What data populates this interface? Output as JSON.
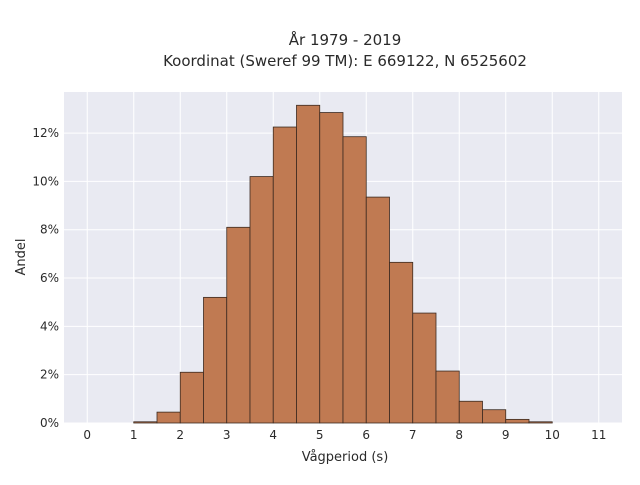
{
  "colors": {
    "bar_fill": "#c07a52",
    "bar_stroke": "#3b2a20",
    "plot_background": "#e9eaf2",
    "grid": "#ffffff"
  },
  "chart_data": {
    "type": "bar",
    "title_lines": [
      "År 1979 - 2019",
      "Koordinat (Sweref 99 TM): E 669122, N 6525602"
    ],
    "xlabel": "Vågperiod (s)",
    "ylabel": "Andel",
    "xlim": [
      -0.5,
      11.5
    ],
    "ylim": [
      0,
      13.7
    ],
    "x_ticks": [
      0,
      1,
      2,
      3,
      4,
      5,
      6,
      7,
      8,
      9,
      10,
      11
    ],
    "y_ticks": [
      0,
      2,
      4,
      6,
      8,
      10,
      12
    ],
    "y_tick_labels": [
      "0%",
      "2%",
      "4%",
      "6%",
      "8%",
      "10%",
      "12%"
    ],
    "grid": true,
    "bin_width": 0.5,
    "bin_starts": [
      1.0,
      1.5,
      2.0,
      2.5,
      3.0,
      3.5,
      4.0,
      4.5,
      5.0,
      5.5,
      6.0,
      6.5,
      7.0,
      7.5,
      8.0,
      8.5,
      9.0,
      9.5
    ],
    "values": [
      0.05,
      0.45,
      2.1,
      5.2,
      8.1,
      10.2,
      12.25,
      13.15,
      12.85,
      11.85,
      9.35,
      6.65,
      4.55,
      2.15,
      0.9,
      0.55,
      0.15,
      0.05
    ]
  }
}
